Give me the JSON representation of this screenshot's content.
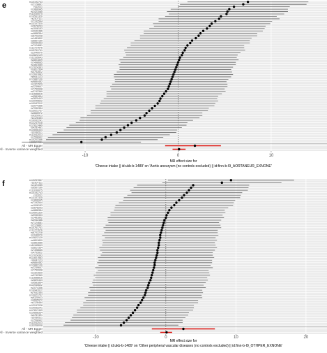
{
  "panels": [
    {
      "letter": "e",
      "xlabel": "MR effect size for",
      "subtitle": "'Cheese intake || id:ukb-b-1489' on 'Aortic aneurysm (no controls excluded) || id:finn-b-I9_AORTANEUR_EXNONE'",
      "x_ticks": [
        -10,
        0,
        10
      ],
      "summary_labels": [
        "All - MR Egger",
        "All - Inverse variance weighted"
      ],
      "snp_labels": [
        "rs10192743",
        "rs2128861",
        "rs12011",
        "rs1866945",
        "rs1421085",
        "rs11030075",
        "rs10501320",
        "rs2307111",
        "rs7192544",
        "rs13107325",
        "rs2678203",
        "rs1008153",
        "rs4942486",
        "rs4888384",
        "rs6702228",
        "rs1481802",
        "rs6567160",
        "rs9930333",
        "rs7124681",
        "rs11727676",
        "rs10761741",
        "rs1040070",
        "rs10822129",
        "rs11165643",
        "rs4801809",
        "rs7498665",
        "rs2861685",
        "rs17024393",
        "rs3817334",
        "rs4752822",
        "rs12607883",
        "rs9641123",
        "rs12882130",
        "rs9884482",
        "rs1321529",
        "rs2239647",
        "rs7759938",
        "rs3742369",
        "rs11688816",
        "rs9581854",
        "rs2820443",
        "rs12940622",
        "rs10947012",
        "rs2074356",
        "rs7932354",
        "rs13021737",
        "rs4665972",
        "rs9320913",
        "rs1126464",
        "rs10932241",
        "rs12247028",
        "rs17817449",
        "rs4787491",
        "rs10858334",
        "rs3936511",
        "rs11042023",
        "rs1558902",
        "rs10203386",
        "rs66627081"
      ]
    },
    {
      "letter": "f",
      "xlabel": "MR effect size for",
      "subtitle": "'Cheese intake || id:ukb-b-1489' on 'Other peripheral vascular diseases (no controls excluded) || id:finn-b-I9_OTHPER_EXNONE'",
      "x_ticks": [
        -10,
        0,
        10,
        20
      ],
      "summary_labels": [
        "All - MR Egger",
        "All - Inverse variance weighted"
      ],
      "snp_labels": [
        "rs13257867",
        "rs2307111",
        "rs1421085",
        "rs6567160",
        "rs11030075",
        "rs10192743",
        "rs12011",
        "rs13107325",
        "rs1866945",
        "rs7192544",
        "rs1008153",
        "rs2678203",
        "rs4888384",
        "rs10501320",
        "rs9930333",
        "rs1481802",
        "rs4942486",
        "rs7124681",
        "rs2128861",
        "rs10761741",
        "rs11727676",
        "rs6702228",
        "rs1040070",
        "rs10822129",
        "rs4801809",
        "rs2861685",
        "rs11165643",
        "rs3817334",
        "rs7498665",
        "rs4752822",
        "rs17024393",
        "rs12607883",
        "rs9641123",
        "rs9884482",
        "rs12882130",
        "rs2239647",
        "rs7759938",
        "rs1321529",
        "rs3742369",
        "rs11688816",
        "rs2820443",
        "rs9581854",
        "rs12940622",
        "rs2074356",
        "rs10947012",
        "rs7932354",
        "rs13021737",
        "rs9320913",
        "rs4665972",
        "rs1126464",
        "rs12247028",
        "rs10932241",
        "rs17817449",
        "rs10858334",
        "rs4787491",
        "rs3936511",
        "rs1558902",
        "rs11042023",
        "rs33958008"
      ]
    }
  ],
  "chart_data": [
    {
      "type": "scatter",
      "title": "",
      "xlabel": "MR effect size for\n'Cheese intake || id:ukb-b-1489' on 'Aortic aneurysm (no controls excluded) || id:finn-b-I9_AORTANEUR_EXNONE'",
      "ylabel": "",
      "xlim": [
        -14.5,
        16
      ],
      "estimates": [
        7.5,
        7.0,
        6.0,
        5.5,
        5.3,
        5.2,
        4.6,
        4.4,
        4.0,
        3.6,
        3.4,
        3.1,
        2.7,
        2.4,
        2.2,
        1.9,
        1.5,
        1.3,
        1.0,
        0.8,
        0.7,
        0.5,
        0.4,
        0.2,
        0.1,
        0.0,
        -0.1,
        -0.2,
        -0.3,
        -0.4,
        -0.5,
        -0.6,
        -0.7,
        -0.8,
        -0.9,
        -1.0,
        -1.1,
        -1.3,
        -1.5,
        -1.7,
        -1.9,
        -2.0,
        -2.2,
        -2.5,
        -2.8,
        -3.1,
        -3.4,
        -3.6,
        -4.1,
        -4.5,
        -5.0,
        -5.4,
        -5.8,
        -6.2,
        -6.6,
        -7.2,
        -7.8,
        -8.2,
        -10.4
      ],
      "ci_halfwidth": [
        6.5,
        6.8,
        6.0,
        6.3,
        6.5,
        6.2,
        6.0,
        6.5,
        6.1,
        6.3,
        6.0,
        6.2,
        6.4,
        6.1,
        6.3,
        6.0,
        6.2,
        6.4,
        6.1,
        6.3,
        6.5,
        6.2,
        6.0,
        6.1,
        6.4,
        6.2,
        6.3,
        6.1,
        6.0,
        6.2,
        6.4,
        6.3,
        6.1,
        6.0,
        6.2,
        6.3,
        6.1,
        6.4,
        6.2,
        6.0,
        6.1,
        6.3,
        6.2,
        6.4,
        6.1,
        6.3,
        6.0,
        6.2,
        6.4,
        6.1,
        6.0,
        6.3,
        6.2,
        6.1,
        6.4,
        6.3,
        6.2,
        6.0,
        6.4
      ],
      "summary": [
        {
          "name": "All - MR Egger",
          "estimate": 1.8,
          "lower": -1.4,
          "upper": 4.6
        },
        {
          "name": "All - Inverse variance weighted",
          "estimate": 0.1,
          "lower": -0.6,
          "upper": 0.8
        }
      ],
      "reference_line": 0,
      "grid": true
    },
    {
      "type": "scatter",
      "title": "",
      "xlabel": "MR effect size for\n'Cheese intake || id:ukb-b-1489' on 'Other peripheral vascular diseases (no controls excluded) || id:finn-b-I9_OTHPER_EXNONE'",
      "ylabel": "",
      "xlim": [
        -17.5,
        23
      ],
      "estimates": [
        9.3,
        8.0,
        3.9,
        3.6,
        3.3,
        3.0,
        2.6,
        2.3,
        1.9,
        1.5,
        1.2,
        0.8,
        0.5,
        0.3,
        0.1,
        0.0,
        -0.2,
        -0.3,
        -0.4,
        -0.5,
        -0.6,
        -0.7,
        -0.8,
        -0.8,
        -0.9,
        -1.0,
        -1.0,
        -1.1,
        -1.2,
        -1.2,
        -1.3,
        -1.4,
        -1.5,
        -1.6,
        -1.6,
        -1.7,
        -1.8,
        -1.9,
        -2.0,
        -2.1,
        -2.2,
        -2.4,
        -2.5,
        -2.6,
        -2.8,
        -2.9,
        -3.0,
        -3.2,
        -3.4,
        -3.6,
        -3.9,
        -4.1,
        -4.4,
        -4.7,
        -5.0,
        -5.3,
        -5.6,
        -6.0,
        -6.4
      ],
      "ci_halfwidth": [
        9.0,
        8.5,
        8.0,
        8.2,
        8.4,
        7.9,
        8.1,
        8.3,
        8.0,
        8.2,
        8.4,
        8.1,
        7.9,
        8.2,
        8.0,
        8.3,
        8.1,
        7.9,
        8.2,
        8.4,
        8.0,
        8.1,
        8.3,
        7.9,
        8.2,
        8.0,
        8.1,
        8.4,
        8.2,
        7.9,
        8.0,
        8.3,
        8.1,
        8.2,
        8.0,
        8.4,
        7.9,
        8.1,
        8.3,
        8.0,
        8.2,
        8.1,
        7.9,
        8.3,
        8.0,
        8.2,
        8.1,
        8.4,
        8.0,
        8.2,
        7.9,
        8.1,
        8.3,
        8.0,
        8.2,
        8.1,
        8.0,
        8.4,
        8.2
      ],
      "summary": [
        {
          "name": "All - MR Egger",
          "estimate": 2.5,
          "lower": -2.0,
          "upper": 7.0
        },
        {
          "name": "All - Inverse variance weighted",
          "estimate": 0.1,
          "lower": -0.8,
          "upper": 0.9
        }
      ],
      "reference_line": 0,
      "grid": true
    }
  ]
}
